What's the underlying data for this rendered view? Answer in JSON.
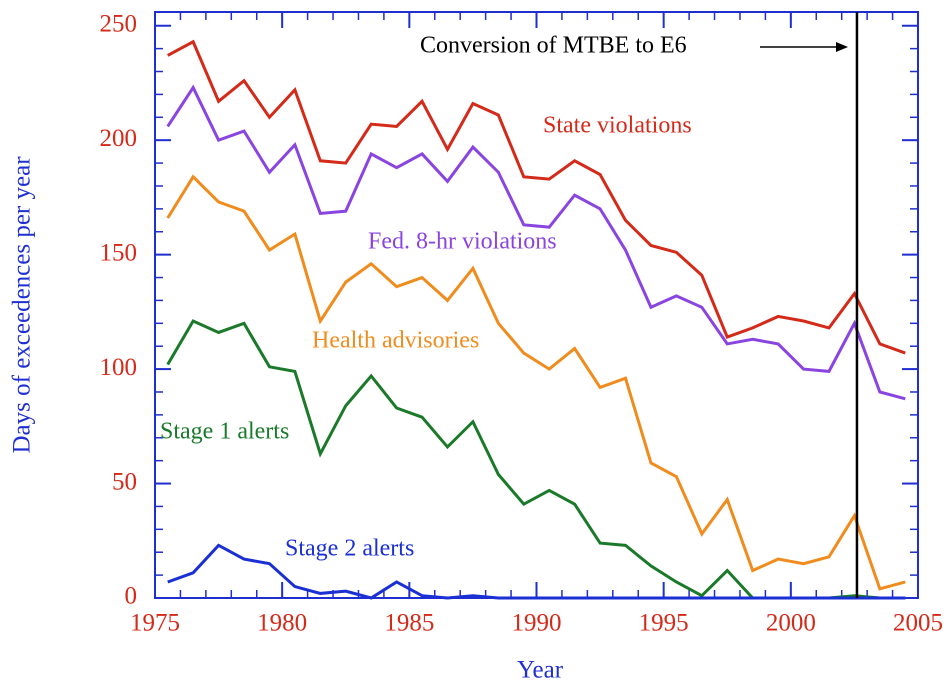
{
  "chart_data": {
    "type": "line",
    "xlabel": "Year",
    "ylabel": "Days of exceedences per year",
    "x": [
      1975.5,
      1976.5,
      1977.5,
      1978.5,
      1979.5,
      1980.5,
      1981.5,
      1982.5,
      1983.5,
      1984.5,
      1985.5,
      1986.5,
      1987.5,
      1988.5,
      1989.5,
      1990.5,
      1991.5,
      1992.5,
      1993.5,
      1994.5,
      1995.5,
      1996.5,
      1997.5,
      1998.5,
      1999.5,
      2000.5,
      2001.5,
      2002.5,
      2003.5,
      2004.5
    ],
    "series": [
      {
        "name": "State violations",
        "color": "#d42a1a",
        "values": [
          237,
          243,
          217,
          226,
          210,
          222,
          191,
          190,
          207,
          206,
          217,
          196,
          216,
          211,
          184,
          183,
          191,
          185,
          165,
          154,
          151,
          141,
          114,
          118,
          123,
          121,
          118,
          133,
          111,
          107
        ]
      },
      {
        "name": "Fed. 8-hr violations",
        "color": "#8a44e0",
        "values": [
          206,
          223,
          200,
          204,
          186,
          198,
          168,
          169,
          194,
          188,
          194,
          182,
          197,
          186,
          163,
          162,
          176,
          170,
          152,
          127,
          132,
          127,
          111,
          113,
          111,
          100,
          99,
          120,
          90,
          87
        ]
      },
      {
        "name": "Health advisories",
        "color": "#f08c1e",
        "values": [
          166,
          184,
          173,
          169,
          152,
          159,
          121,
          138,
          146,
          136,
          140,
          130,
          144,
          120,
          107,
          100,
          109,
          92,
          96,
          59,
          53,
          28,
          43,
          12,
          17,
          15,
          18,
          36,
          4,
          7
        ]
      },
      {
        "name": "Stage 1 alerts",
        "color": "#1a7a2a",
        "values": [
          102,
          121,
          116,
          120,
          101,
          99,
          63,
          84,
          97,
          83,
          79,
          66,
          77,
          54,
          41,
          47,
          41,
          24,
          23,
          14,
          7,
          1,
          12,
          0,
          0,
          0,
          0,
          1,
          0,
          0
        ]
      },
      {
        "name": "Stage 2 alerts",
        "color": "#1a2fd4",
        "values": [
          7,
          11,
          23,
          17,
          15,
          5,
          2,
          3,
          0,
          7,
          1,
          0,
          1,
          0,
          0,
          0,
          0,
          0,
          0,
          0,
          0,
          0,
          0,
          0,
          0,
          0,
          0,
          0,
          0,
          0
        ]
      }
    ],
    "xlim": [
      1975,
      2005
    ],
    "xticks": [
      1975,
      1980,
      1985,
      1990,
      1995,
      2000,
      2005
    ],
    "ylim": [
      0,
      256
    ],
    "yticks": [
      0,
      50,
      100,
      150,
      200,
      250
    ],
    "minor_xstep": 1,
    "minor_ystep": 10,
    "axis_color": "#1f2fd0",
    "vline": {
      "x": 2002.6,
      "label": "Conversion of MTBE to E6",
      "color": "#000000"
    }
  }
}
